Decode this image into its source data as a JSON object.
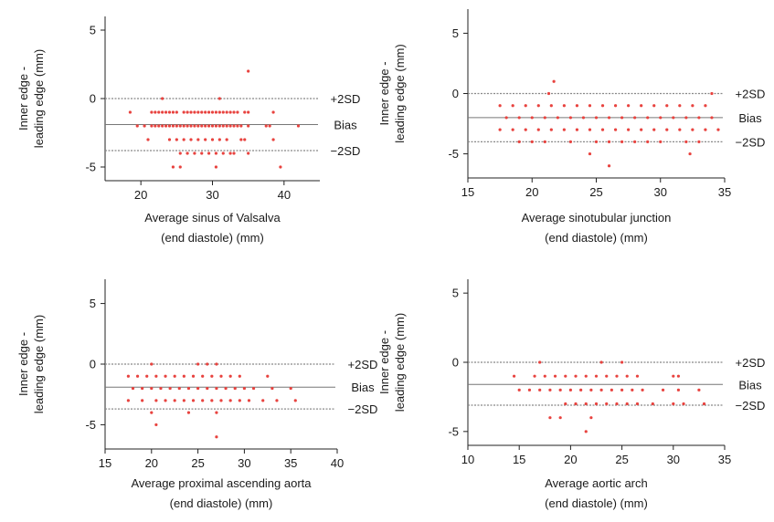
{
  "chart_data": [
    {
      "type": "scatter",
      "ylabel_lines": [
        "Inner edge -",
        "leading edge (mm)"
      ],
      "xlabel_lines": [
        "Average sinus of Valsalva",
        "(end diastole) (mm)"
      ],
      "xlim": [
        15,
        45
      ],
      "ylim": [
        -6,
        6
      ],
      "xticks": [
        20,
        30,
        40
      ],
      "yticks": [
        -5,
        0,
        5
      ],
      "reference_lines": {
        "upper_sd": 0,
        "bias": -1.9,
        "lower_sd": -3.8
      },
      "reference_labels": {
        "upper": "+2SD",
        "bias": "Bias",
        "lower": "−2SD"
      },
      "points": [
        {
          "x": 18.5,
          "y": -1
        },
        {
          "x": 19.5,
          "y": -2
        },
        {
          "x": 20.5,
          "y": -2
        },
        {
          "x": 21,
          "y": -3
        },
        {
          "x": 21.5,
          "y": -1
        },
        {
          "x": 21.5,
          "y": -2
        },
        {
          "x": 22,
          "y": -1
        },
        {
          "x": 22,
          "y": -2
        },
        {
          "x": 22.5,
          "y": -1
        },
        {
          "x": 22.5,
          "y": -2
        },
        {
          "x": 23,
          "y": 0
        },
        {
          "x": 23,
          "y": -1
        },
        {
          "x": 23,
          "y": -2
        },
        {
          "x": 23.5,
          "y": -1
        },
        {
          "x": 23.5,
          "y": -2
        },
        {
          "x": 24,
          "y": -1
        },
        {
          "x": 24,
          "y": -2
        },
        {
          "x": 24,
          "y": -3
        },
        {
          "x": 24.5,
          "y": -1
        },
        {
          "x": 24.5,
          "y": -2
        },
        {
          "x": 24.5,
          "y": -5
        },
        {
          "x": 25,
          "y": -1
        },
        {
          "x": 25,
          "y": -2
        },
        {
          "x": 25,
          "y": -3
        },
        {
          "x": 25.5,
          "y": -2
        },
        {
          "x": 25.5,
          "y": -4
        },
        {
          "x": 25.5,
          "y": -5
        },
        {
          "x": 26,
          "y": -1
        },
        {
          "x": 26,
          "y": -2
        },
        {
          "x": 26,
          "y": -3
        },
        {
          "x": 26.5,
          "y": -1
        },
        {
          "x": 26.5,
          "y": -2
        },
        {
          "x": 26.5,
          "y": -4
        },
        {
          "x": 27,
          "y": -1
        },
        {
          "x": 27,
          "y": -2
        },
        {
          "x": 27,
          "y": -3
        },
        {
          "x": 27.5,
          "y": -1
        },
        {
          "x": 27.5,
          "y": -2
        },
        {
          "x": 27.5,
          "y": -4
        },
        {
          "x": 28,
          "y": -1
        },
        {
          "x": 28,
          "y": -2
        },
        {
          "x": 28,
          "y": -3
        },
        {
          "x": 28.5,
          "y": -1
        },
        {
          "x": 28.5,
          "y": -2
        },
        {
          "x": 28.5,
          "y": -4
        },
        {
          "x": 29,
          "y": -1
        },
        {
          "x": 29,
          "y": -2
        },
        {
          "x": 29,
          "y": -3
        },
        {
          "x": 29.5,
          "y": -1
        },
        {
          "x": 29.5,
          "y": -2
        },
        {
          "x": 29.5,
          "y": -4
        },
        {
          "x": 30,
          "y": -1
        },
        {
          "x": 30,
          "y": -2
        },
        {
          "x": 30,
          "y": -3
        },
        {
          "x": 30.5,
          "y": -1
        },
        {
          "x": 30.5,
          "y": -2
        },
        {
          "x": 30.5,
          "y": -4
        },
        {
          "x": 30.5,
          "y": -5
        },
        {
          "x": 31,
          "y": 0
        },
        {
          "x": 31,
          "y": -1
        },
        {
          "x": 31,
          "y": -2
        },
        {
          "x": 31,
          "y": -3
        },
        {
          "x": 31.5,
          "y": -1
        },
        {
          "x": 31.5,
          "y": -2
        },
        {
          "x": 31.5,
          "y": -4
        },
        {
          "x": 32,
          "y": -1
        },
        {
          "x": 32,
          "y": -2
        },
        {
          "x": 32,
          "y": -3
        },
        {
          "x": 32.5,
          "y": -1
        },
        {
          "x": 32.5,
          "y": -2
        },
        {
          "x": 32.5,
          "y": -4
        },
        {
          "x": 33,
          "y": -1
        },
        {
          "x": 33,
          "y": -2
        },
        {
          "x": 33,
          "y": -4
        },
        {
          "x": 33.5,
          "y": -1
        },
        {
          "x": 33.5,
          "y": -2
        },
        {
          "x": 34,
          "y": -2
        },
        {
          "x": 34,
          "y": -3
        },
        {
          "x": 34.5,
          "y": -1
        },
        {
          "x": 34.5,
          "y": -3
        },
        {
          "x": 35,
          "y": 2
        },
        {
          "x": 35,
          "y": -1
        },
        {
          "x": 35,
          "y": -2
        },
        {
          "x": 35,
          "y": -4
        },
        {
          "x": 37.5,
          "y": -2
        },
        {
          "x": 38,
          "y": -2
        },
        {
          "x": 38.5,
          "y": -1
        },
        {
          "x": 38.5,
          "y": -3
        },
        {
          "x": 39.5,
          "y": -5
        },
        {
          "x": 42,
          "y": -2
        }
      ]
    },
    {
      "type": "scatter",
      "ylabel_lines": [
        "Inner edge -",
        "leading edge (mm)"
      ],
      "xlabel_lines": [
        "Average sinotubular junction",
        "(end diastole) (mm)"
      ],
      "xlim": [
        15,
        35
      ],
      "ylim": [
        -7,
        7
      ],
      "xticks": [
        15,
        20,
        25,
        30,
        35
      ],
      "yticks": [
        -5,
        0,
        5
      ],
      "reference_lines": {
        "upper_sd": 0,
        "bias": -2,
        "lower_sd": -4
      },
      "reference_labels": {
        "upper": "+2SD",
        "bias": "Bias",
        "lower": "−2SD"
      },
      "points": [
        {
          "x": 17.5,
          "y": -1
        },
        {
          "x": 17.5,
          "y": -3
        },
        {
          "x": 18,
          "y": -2
        },
        {
          "x": 18.5,
          "y": -1
        },
        {
          "x": 18.5,
          "y": -3
        },
        {
          "x": 19,
          "y": -2
        },
        {
          "x": 19,
          "y": -4
        },
        {
          "x": 19.5,
          "y": -1
        },
        {
          "x": 19.5,
          "y": -3
        },
        {
          "x": 20,
          "y": -2
        },
        {
          "x": 20,
          "y": -4
        },
        {
          "x": 20.5,
          "y": -1
        },
        {
          "x": 20.5,
          "y": -3
        },
        {
          "x": 21,
          "y": -2
        },
        {
          "x": 21,
          "y": -4
        },
        {
          "x": 21.3,
          "y": 0
        },
        {
          "x": 21.5,
          "y": -1
        },
        {
          "x": 21.5,
          "y": -3
        },
        {
          "x": 21.7,
          "y": 1
        },
        {
          "x": 22,
          "y": -2
        },
        {
          "x": 22.5,
          "y": -1
        },
        {
          "x": 22.5,
          "y": -3
        },
        {
          "x": 23,
          "y": -2
        },
        {
          "x": 23,
          "y": -4
        },
        {
          "x": 23.5,
          "y": -1
        },
        {
          "x": 23.5,
          "y": -3
        },
        {
          "x": 24,
          "y": -2
        },
        {
          "x": 24.5,
          "y": -1
        },
        {
          "x": 24.5,
          "y": -3
        },
        {
          "x": 24.5,
          "y": -5
        },
        {
          "x": 25,
          "y": -2
        },
        {
          "x": 25,
          "y": -4
        },
        {
          "x": 25.5,
          "y": -1
        },
        {
          "x": 25.5,
          "y": -3
        },
        {
          "x": 26,
          "y": -2
        },
        {
          "x": 26,
          "y": -4
        },
        {
          "x": 26,
          "y": -6
        },
        {
          "x": 26.5,
          "y": -1
        },
        {
          "x": 26.5,
          "y": -3
        },
        {
          "x": 27,
          "y": -2
        },
        {
          "x": 27,
          "y": -4
        },
        {
          "x": 27.5,
          "y": -1
        },
        {
          "x": 27.5,
          "y": -3
        },
        {
          "x": 28,
          "y": -2
        },
        {
          "x": 28,
          "y": -4
        },
        {
          "x": 28.5,
          "y": -1
        },
        {
          "x": 28.5,
          "y": -3
        },
        {
          "x": 29,
          "y": -2
        },
        {
          "x": 29,
          "y": -4
        },
        {
          "x": 29.5,
          "y": -1
        },
        {
          "x": 29.5,
          "y": -3
        },
        {
          "x": 30,
          "y": -2
        },
        {
          "x": 30,
          "y": -4
        },
        {
          "x": 30.5,
          "y": -1
        },
        {
          "x": 30.5,
          "y": -3
        },
        {
          "x": 31,
          "y": -2
        },
        {
          "x": 31.5,
          "y": -1
        },
        {
          "x": 31.5,
          "y": -3
        },
        {
          "x": 32,
          "y": -2
        },
        {
          "x": 32,
          "y": -4
        },
        {
          "x": 32.3,
          "y": -5
        },
        {
          "x": 32.5,
          "y": -1
        },
        {
          "x": 32.5,
          "y": -3
        },
        {
          "x": 33,
          "y": -2
        },
        {
          "x": 33,
          "y": -4
        },
        {
          "x": 33.5,
          "y": -1
        },
        {
          "x": 33.5,
          "y": -3
        },
        {
          "x": 34,
          "y": 0
        },
        {
          "x": 34,
          "y": -2
        },
        {
          "x": 34.5,
          "y": -3
        }
      ]
    },
    {
      "type": "scatter",
      "ylabel_lines": [
        "Inner edge -",
        "leading edge (mm)"
      ],
      "xlabel_lines": [
        "Average proximal ascending aorta",
        "(end diastole) (mm)"
      ],
      "xlim": [
        15,
        40
      ],
      "ylim": [
        -7,
        7
      ],
      "xticks": [
        15,
        20,
        25,
        30,
        35,
        40
      ],
      "yticks": [
        -5,
        0,
        5
      ],
      "reference_lines": {
        "upper_sd": 0,
        "bias": -1.9,
        "lower_sd": -3.7
      },
      "reference_labels": {
        "upper": "+2SD",
        "bias": "Bias",
        "lower": "−2SD"
      },
      "points": [
        {
          "x": 17.5,
          "y": -1
        },
        {
          "x": 17.5,
          "y": -3
        },
        {
          "x": 18,
          "y": -2
        },
        {
          "x": 18.5,
          "y": -1
        },
        {
          "x": 19,
          "y": -2
        },
        {
          "x": 19,
          "y": -3
        },
        {
          "x": 19.5,
          "y": -1
        },
        {
          "x": 20,
          "y": 0
        },
        {
          "x": 20,
          "y": -2
        },
        {
          "x": 20,
          "y": -4
        },
        {
          "x": 20.5,
          "y": -1
        },
        {
          "x": 20.5,
          "y": -3
        },
        {
          "x": 20.5,
          "y": -5
        },
        {
          "x": 21,
          "y": -2
        },
        {
          "x": 21.5,
          "y": -1
        },
        {
          "x": 21.5,
          "y": -3
        },
        {
          "x": 22,
          "y": -2
        },
        {
          "x": 22.5,
          "y": -1
        },
        {
          "x": 22.5,
          "y": -3
        },
        {
          "x": 23,
          "y": -2
        },
        {
          "x": 23.5,
          "y": -1
        },
        {
          "x": 23.5,
          "y": -3
        },
        {
          "x": 24,
          "y": -2
        },
        {
          "x": 24,
          "y": -4
        },
        {
          "x": 24.5,
          "y": -1
        },
        {
          "x": 24.5,
          "y": -3
        },
        {
          "x": 25,
          "y": 0
        },
        {
          "x": 25,
          "y": -2
        },
        {
          "x": 25.5,
          "y": -1
        },
        {
          "x": 25.5,
          "y": -3
        },
        {
          "x": 26,
          "y": 0
        },
        {
          "x": 26,
          "y": -2
        },
        {
          "x": 26.5,
          "y": -1
        },
        {
          "x": 26.5,
          "y": -3
        },
        {
          "x": 27,
          "y": 0
        },
        {
          "x": 27,
          "y": -2
        },
        {
          "x": 27,
          "y": -4
        },
        {
          "x": 27,
          "y": -6
        },
        {
          "x": 27.5,
          "y": -1
        },
        {
          "x": 27.5,
          "y": -3
        },
        {
          "x": 28,
          "y": -2
        },
        {
          "x": 28.5,
          "y": -1
        },
        {
          "x": 28.5,
          "y": -3
        },
        {
          "x": 29,
          "y": -2
        },
        {
          "x": 29.5,
          "y": -1
        },
        {
          "x": 29.5,
          "y": -3
        },
        {
          "x": 30,
          "y": -2
        },
        {
          "x": 30.5,
          "y": -3
        },
        {
          "x": 31,
          "y": -2
        },
        {
          "x": 32,
          "y": -3
        },
        {
          "x": 32.5,
          "y": -1
        },
        {
          "x": 33,
          "y": -2
        },
        {
          "x": 33.5,
          "y": -3
        },
        {
          "x": 35,
          "y": -2
        },
        {
          "x": 35.5,
          "y": -3
        }
      ]
    },
    {
      "type": "scatter",
      "ylabel_lines": [
        "Inner edge -",
        "leading edge (mm)"
      ],
      "xlabel_lines": [
        "Average aortic arch",
        "(end diastole) (mm)"
      ],
      "xlim": [
        10,
        35
      ],
      "ylim": [
        -6,
        6
      ],
      "xticks": [
        10,
        15,
        20,
        25,
        30,
        35
      ],
      "yticks": [
        -5,
        0,
        5
      ],
      "reference_lines": {
        "upper_sd": 0,
        "bias": -1.6,
        "lower_sd": -3.1
      },
      "reference_labels": {
        "upper": "+2SD",
        "bias": "Bias",
        "lower": "−2SD"
      },
      "points": [
        {
          "x": 14.5,
          "y": -1
        },
        {
          "x": 15,
          "y": -2
        },
        {
          "x": 16,
          "y": -2
        },
        {
          "x": 16.5,
          "y": -1
        },
        {
          "x": 17,
          "y": 0
        },
        {
          "x": 17,
          "y": -2
        },
        {
          "x": 17.5,
          "y": -1
        },
        {
          "x": 18,
          "y": -2
        },
        {
          "x": 18,
          "y": -4
        },
        {
          "x": 18.5,
          "y": -1
        },
        {
          "x": 19,
          "y": -2
        },
        {
          "x": 19,
          "y": -4
        },
        {
          "x": 19.5,
          "y": -1
        },
        {
          "x": 19.5,
          "y": -3
        },
        {
          "x": 20,
          "y": -2
        },
        {
          "x": 20.5,
          "y": -1
        },
        {
          "x": 20.5,
          "y": -3
        },
        {
          "x": 21,
          "y": -2
        },
        {
          "x": 21.5,
          "y": -1
        },
        {
          "x": 21.5,
          "y": -3
        },
        {
          "x": 21.5,
          "y": -5
        },
        {
          "x": 22,
          "y": -2
        },
        {
          "x": 22,
          "y": -4
        },
        {
          "x": 22.5,
          "y": -1
        },
        {
          "x": 22.5,
          "y": -3
        },
        {
          "x": 23,
          "y": 0
        },
        {
          "x": 23,
          "y": -2
        },
        {
          "x": 23.5,
          "y": -1
        },
        {
          "x": 23.5,
          "y": -3
        },
        {
          "x": 24,
          "y": -2
        },
        {
          "x": 24.5,
          "y": -1
        },
        {
          "x": 24.5,
          "y": -3
        },
        {
          "x": 25,
          "y": 0
        },
        {
          "x": 25,
          "y": -2
        },
        {
          "x": 25.5,
          "y": -1
        },
        {
          "x": 25.5,
          "y": -3
        },
        {
          "x": 26,
          "y": -2
        },
        {
          "x": 26.5,
          "y": -1
        },
        {
          "x": 26.5,
          "y": -3
        },
        {
          "x": 27,
          "y": -2
        },
        {
          "x": 28,
          "y": -3
        },
        {
          "x": 29,
          "y": -2
        },
        {
          "x": 30,
          "y": -1
        },
        {
          "x": 30,
          "y": -3
        },
        {
          "x": 30.5,
          "y": -2
        },
        {
          "x": 30.5,
          "y": -1
        },
        {
          "x": 31,
          "y": -3
        },
        {
          "x": 32.5,
          "y": -2
        },
        {
          "x": 33,
          "y": -3
        }
      ]
    }
  ],
  "colors": {
    "point": "#e8433f",
    "axis": "#222222",
    "bias_line": "#777777",
    "sd_line": "#888888",
    "text": "#1a1a1a"
  }
}
